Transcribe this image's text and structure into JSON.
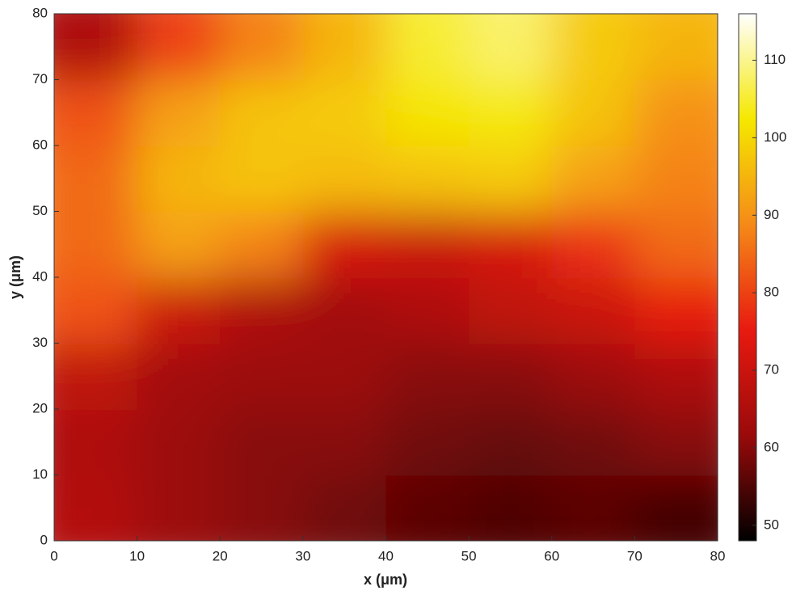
{
  "chart_data": {
    "type": "heatmap",
    "x_label": "x (μm)",
    "y_label": "y (μm)",
    "x": [
      5,
      15,
      25,
      35,
      45,
      55,
      65,
      75
    ],
    "y": [
      5,
      15,
      25,
      35,
      45,
      55,
      65,
      75
    ],
    "z": [
      [
        66,
        62,
        60,
        58,
        56,
        55,
        56,
        54
      ],
      [
        65,
        62,
        60,
        60,
        58,
        57,
        58,
        60
      ],
      [
        68,
        63,
        62,
        62,
        60,
        60,
        62,
        65
      ],
      [
        82,
        70,
        65,
        63,
        65,
        68,
        70,
        75
      ],
      [
        85,
        92,
        88,
        72,
        70,
        72,
        78,
        85
      ],
      [
        85,
        95,
        97,
        96,
        97,
        98,
        92,
        88
      ],
      [
        82,
        92,
        97,
        98,
        102,
        103,
        97,
        90
      ],
      [
        65,
        80,
        88,
        95,
        105,
        108,
        98,
        95
      ]
    ],
    "xlim": [
      0,
      80
    ],
    "ylim": [
      0,
      80
    ],
    "xticks": [
      0,
      10,
      20,
      30,
      40,
      50,
      60,
      70,
      80
    ],
    "yticks": [
      0,
      10,
      20,
      30,
      40,
      50,
      60,
      70,
      80
    ],
    "zlim": [
      48,
      116
    ],
    "zticks": [
      50,
      60,
      70,
      80,
      90,
      100,
      110
    ],
    "colormap": [
      "#000000",
      "#9a0a0a",
      "#e81a10",
      "#f58a18",
      "#f5e800",
      "#ffffff"
    ]
  }
}
